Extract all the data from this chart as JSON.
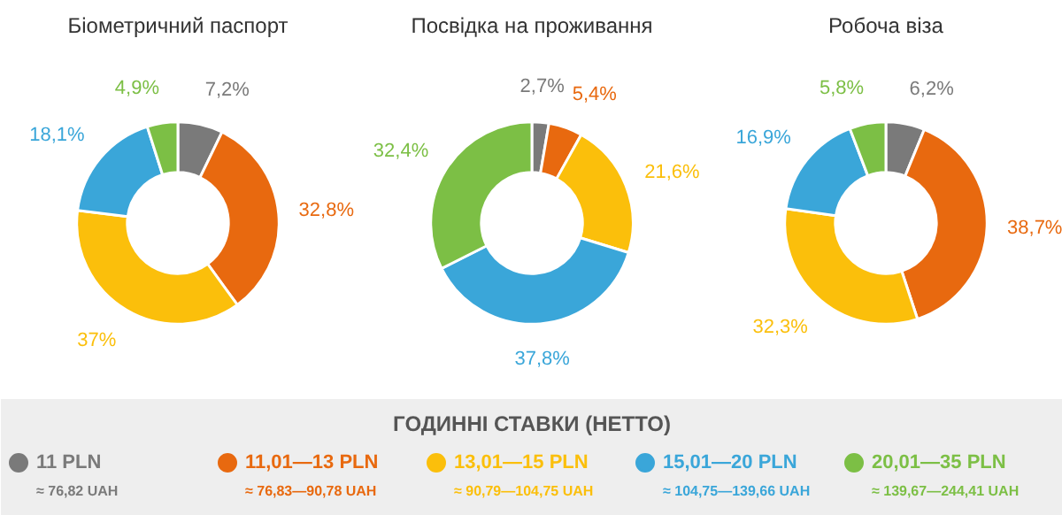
{
  "chart_data": [
    {
      "type": "donut",
      "title": "Біометричний паспорт",
      "categories": [
        "11 PLN\n≈ 76,82 UAH",
        "11,01—13 PLN\n≈ 76,83—90,78 UAH",
        "13,01—15 PLN\n≈ 90,79—104,75 UAH",
        "15,01—20 PLN\n≈ 104,75—139,66 UAH",
        "20,01—35 PLN\n≈ 139,67—244,41 UAH"
      ],
      "values": [
        7.2,
        32.8,
        37,
        18.1,
        4.9
      ],
      "value_labels": [
        "7,2%",
        "32,8%",
        "37%",
        "18,1%",
        "4,9%"
      ],
      "colors": [
        "#7a7a7a",
        "#e8690f",
        "#fbbf0b",
        "#3aa6d9",
        "#7cbf45"
      ],
      "legend": "bottom",
      "legend_title": "ГОДИННІ СТАВКИ (НЕТТО)"
    },
    {
      "type": "donut",
      "title": "Посвідка на проживання",
      "values": [
        2.7,
        5.4,
        21.6,
        37.8,
        32.4
      ],
      "value_labels": [
        "2,7%",
        "5,4%",
        "21,6%",
        "37,8%",
        "32,4%"
      ],
      "colors": [
        "#7a7a7a",
        "#e8690f",
        "#fbbf0b",
        "#3aa6d9",
        "#7cbf45"
      ]
    },
    {
      "type": "donut",
      "title": "Робоча віза",
      "values": [
        6.2,
        38.7,
        32.3,
        16.9,
        5.8
      ],
      "value_labels": [
        "6,2%",
        "38,7%",
        "32,3%",
        "16,9%",
        "5,8%"
      ],
      "colors": [
        "#7a7a7a",
        "#e8690f",
        "#fbbf0b",
        "#3aa6d9",
        "#7cbf45"
      ]
    }
  ]
}
